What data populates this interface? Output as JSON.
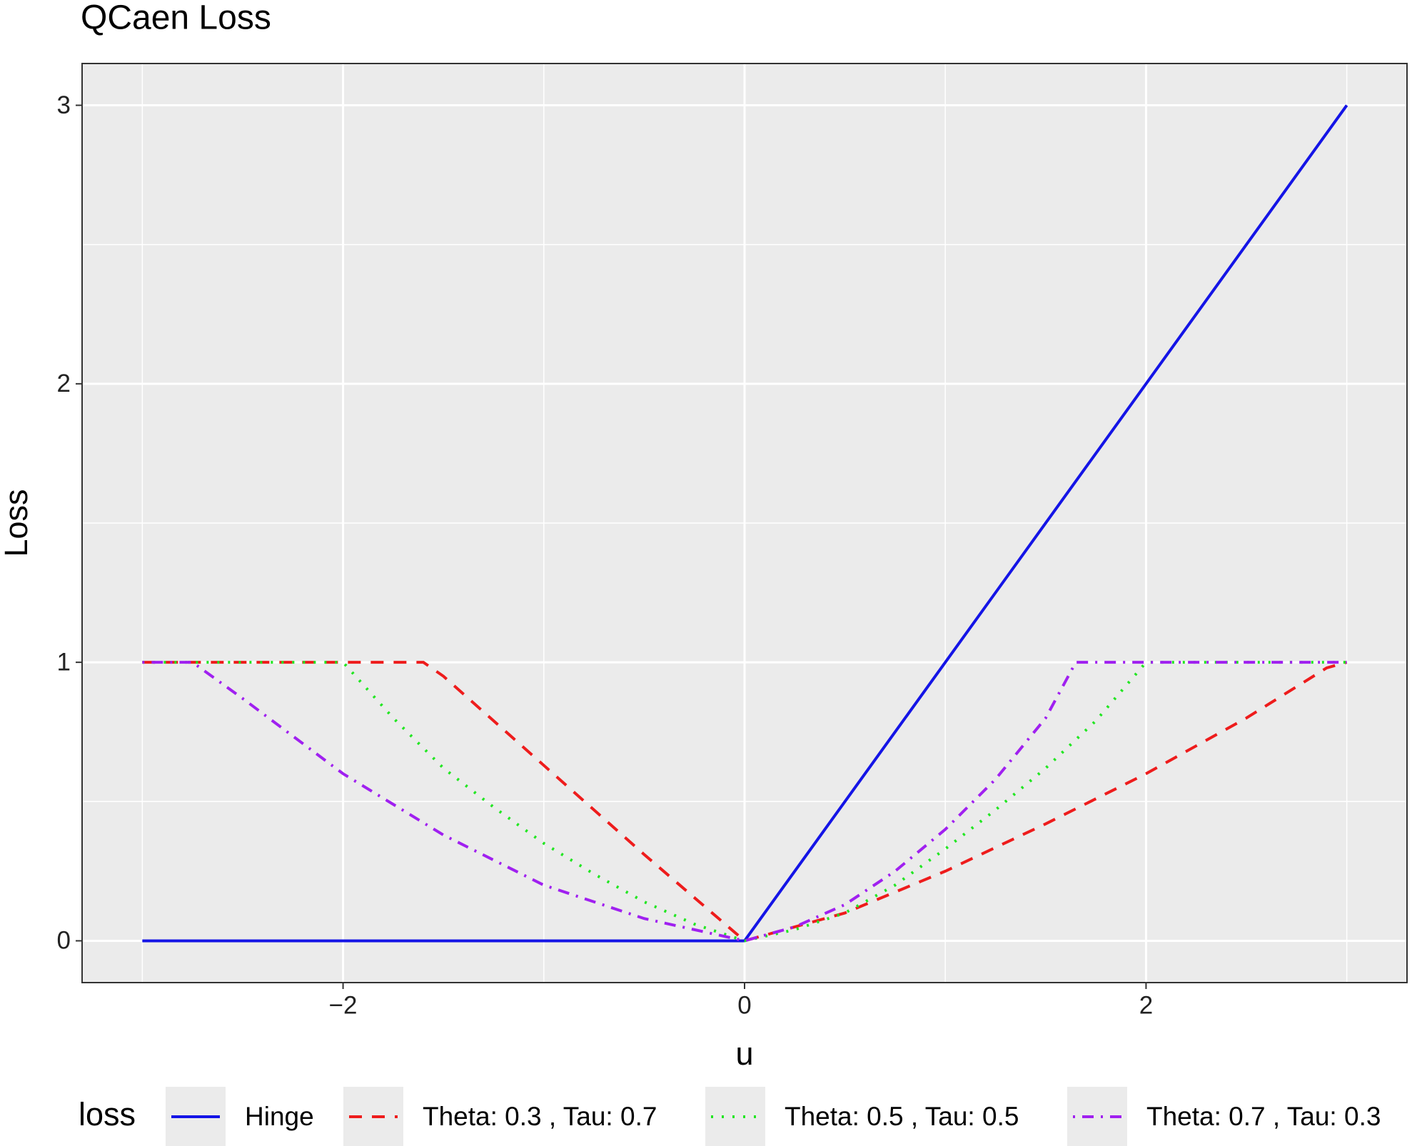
{
  "chart_data": {
    "type": "line",
    "title": "QCaen Loss",
    "x_label": "u",
    "y_label": "Loss",
    "legend_title": "loss",
    "legend_position": "bottom",
    "grid": true,
    "xlim": [
      -3.3,
      3.3
    ],
    "ylim": [
      -0.15,
      3.15
    ],
    "xticks": [
      {
        "value": -2,
        "label": "−2"
      },
      0,
      2
    ],
    "yticks": [
      0,
      1,
      2,
      3
    ],
    "x_minor_grid": [
      -3,
      -1,
      1,
      3
    ],
    "y_minor_grid": [
      0.5,
      1.5,
      2.5
    ],
    "series": [
      {
        "name": "Hinge",
        "color": "#1414e6",
        "linetype": "solid",
        "x": [
          -3,
          0,
          3
        ],
        "values": [
          0,
          0,
          3
        ]
      },
      {
        "name": "Theta: 0.3 , Tau: 0.7",
        "color": "#ee1c1c",
        "linetype": "dashed",
        "x": [
          -3,
          -1.6,
          -1.5,
          -1,
          -0.5,
          0,
          0.5,
          1,
          1.5,
          2,
          2.5,
          2.9,
          3
        ],
        "values": [
          1,
          1,
          0.95,
          0.63,
          0.31,
          0,
          0.1,
          0.25,
          0.42,
          0.6,
          0.8,
          0.98,
          1
        ]
      },
      {
        "name": "Theta: 0.5 , Tau: 0.5",
        "color": "#22e622",
        "linetype": "dotted",
        "x": [
          -3,
          -2,
          -1.75,
          -1.5,
          -1.25,
          -1,
          -0.75,
          -0.5,
          -0.25,
          0,
          0.25,
          0.5,
          0.75,
          1,
          1.25,
          1.5,
          1.75,
          2,
          3
        ],
        "values": [
          1,
          1,
          0.8,
          0.62,
          0.48,
          0.35,
          0.24,
          0.14,
          0.06,
          0,
          0.04,
          0.1,
          0.2,
          0.33,
          0.47,
          0.62,
          0.79,
          1,
          1
        ]
      },
      {
        "name": "Theta: 0.7 , Tau: 0.3",
        "color": "#a020f0",
        "linetype": "dotdash",
        "x": [
          -3,
          -2.75,
          -2.5,
          -2,
          -1.5,
          -1,
          -0.5,
          0,
          0.25,
          0.5,
          0.75,
          1,
          1.25,
          1.5,
          1.65,
          3
        ],
        "values": [
          1,
          1,
          0.87,
          0.6,
          0.38,
          0.2,
          0.08,
          0,
          0.05,
          0.13,
          0.25,
          0.4,
          0.58,
          0.8,
          1,
          1
        ]
      }
    ]
  }
}
